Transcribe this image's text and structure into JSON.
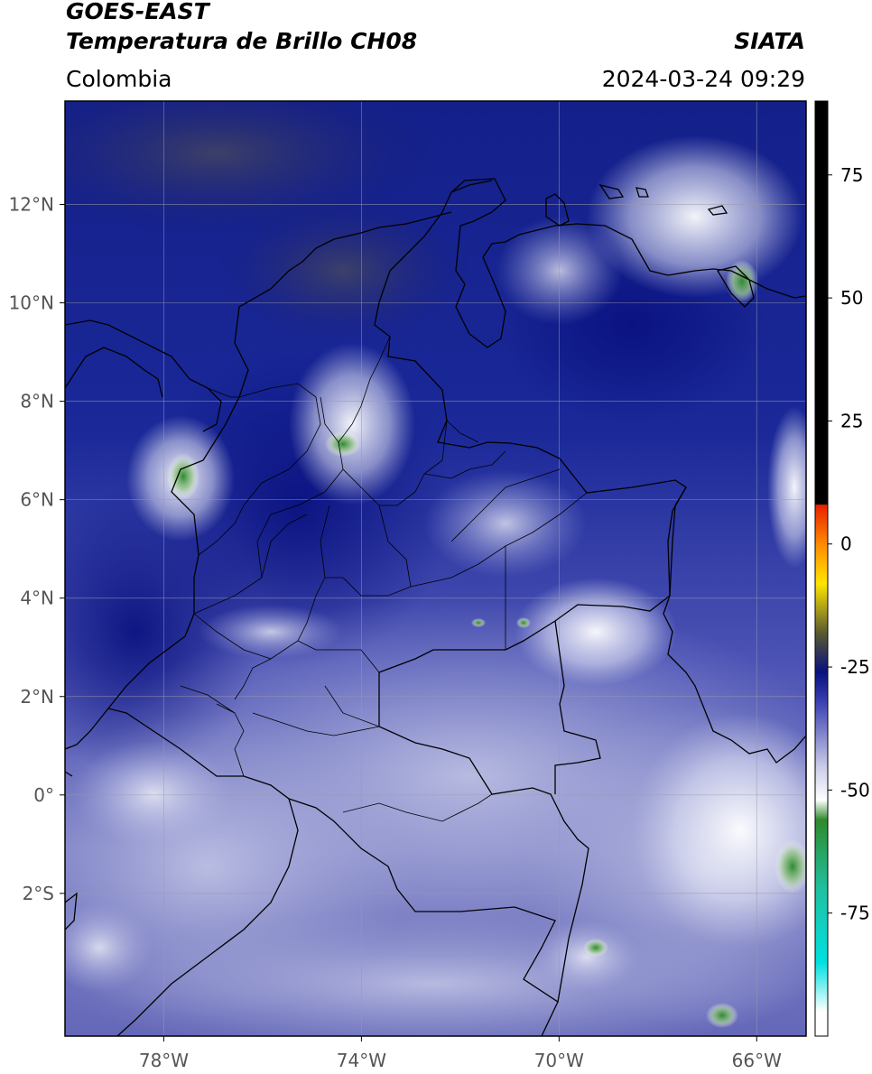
{
  "header": {
    "satellite": "GOES-EAST",
    "product": "Temperatura de Brillo CH08",
    "agency": "SIATA",
    "region": "Colombia",
    "datetime": "2024-03-24 09:29"
  },
  "map": {
    "lat_labels": [
      "12°N",
      "10°N",
      "8°N",
      "6°N",
      "4°N",
      "2°N",
      "0°",
      "2°S"
    ],
    "lon_labels": [
      "78°W",
      "74°W",
      "70°W",
      "66°W"
    ],
    "lat_range": [
      -4.9,
      14.1
    ],
    "lon_range": [
      -80,
      -65
    ],
    "gridlines": true
  },
  "colorbar": {
    "tick_labels": [
      "75",
      "50",
      "25",
      "0",
      "-25",
      "-50",
      "-75"
    ],
    "tick_values": [
      75,
      50,
      25,
      0,
      -25,
      -50,
      -75
    ],
    "range": [
      -100,
      90
    ],
    "colors": {
      "black": "#000000",
      "red": "#e62000",
      "orange": "#ff8a00",
      "yellow": "#ffe600",
      "olive": "#5a5a30",
      "navy": "#08107e",
      "blue": "#3a40b0",
      "lavender": "#c8cae6",
      "white": "#ffffff",
      "green": "#2e8a2a",
      "teal": "#20c0a0",
      "cyan": "#00e0e0"
    }
  }
}
